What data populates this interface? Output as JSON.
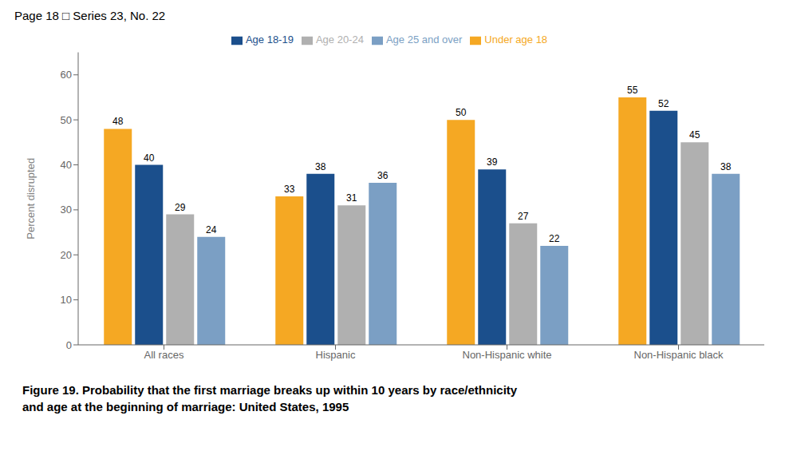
{
  "chart_data": {
    "type": "bar",
    "title": "Figure 19. Probability that the first marriage breaks up within 10 years by race/ethnicity\nand age at the beginning of marriage: United States, 1995",
    "annotations": [
      "Page 18  □  Series 23, No. 22"
    ],
    "categories": [
      "All races",
      "Hispanic",
      "Non-Hispanic white",
      "Non-Hispanic black"
    ],
    "series": [
      {
        "name": "Under age 18",
        "color": "#F5A823",
        "values": [
          48,
          33,
          50,
          55
        ]
      },
      {
        "name": "Age 18-19",
        "color": "#1B4F8C",
        "values": [
          40,
          38,
          39,
          52
        ]
      },
      {
        "name": "Age 20-24",
        "color": "#B0B0B0",
        "values": [
          29,
          31,
          27,
          45
        ]
      },
      {
        "name": "Age 25 and over",
        "color": "#7B9FC4",
        "values": [
          24,
          36,
          22,
          38
        ]
      }
    ],
    "ylabel": "Percent disrupted",
    "ylim": [
      0,
      65
    ],
    "yticks": [
      0,
      10,
      20,
      30,
      40,
      50,
      60
    ],
    "grid": false,
    "legend": "top",
    "data_labels": true
  }
}
